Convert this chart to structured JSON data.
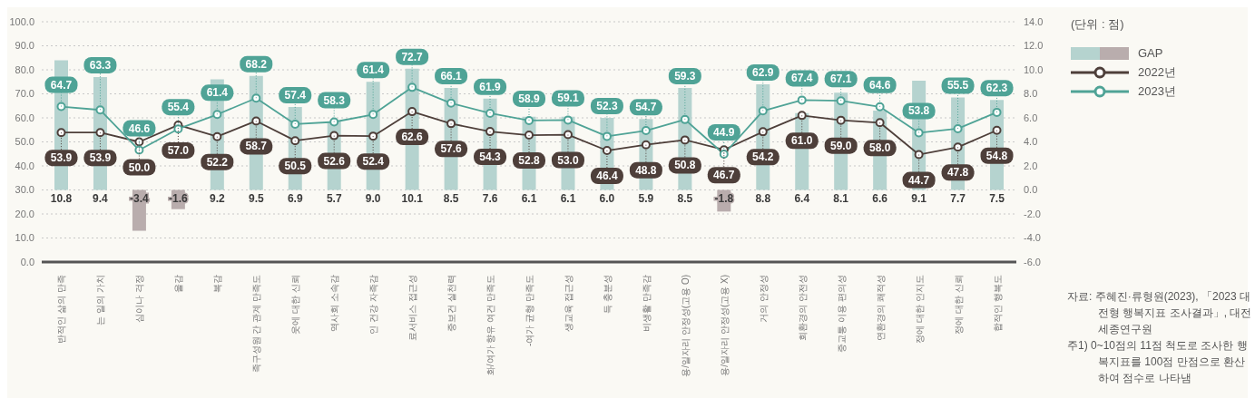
{
  "chart_data": {
    "type": "bar",
    "categories": [
      "반적인 삶의 만족",
      "는 일의 가치",
      "심이나 걱정",
      "울감",
      "복감",
      "족구성원 간 관계 만족도",
      "웃에 대한 신뢰",
      "역사회 소속감",
      "인 건강 자족감",
      "료서비스 접근성",
      "중보건 실천력",
      "화/여가 향유 여건 만족도",
      "-여가 균형 만족도",
      "생교육 접근성",
      "득 충분성",
      "비생활 만족감",
      "용/일자리 안정성(고용 O)",
      "용/일자리 안정성(고용 X)",
      "거의 안정성",
      "회환경의 안전성",
      "중교통 이용 편의성",
      "연환경의 쾌적성",
      "정에 대한 인지도",
      "정에 대한 신뢰",
      "합적인 행복도"
    ],
    "series": [
      {
        "name": "GAP",
        "axis": "y2",
        "value_labels": [
          "10.8",
          "9.4",
          "-3.4",
          "-1.6",
          "9.2",
          "9.5",
          "6.9",
          "5.7",
          "9.0",
          "10.1",
          "8.5",
          "7.6",
          "6.1",
          "6.1",
          "6.0",
          "5.9",
          "8.5",
          "-1.8",
          "8.8",
          "6.4",
          "8.1",
          "6.6",
          "9.1",
          "7.7",
          "7.5"
        ],
        "color": "#b5d3cf",
        "colors": [
          "#b5d3cf",
          "#b5d3cf",
          "#b9adad",
          "#b9adad",
          "#b5d3cf",
          "#b5d3cf",
          "#b5d3cf",
          "#b5d3cf",
          "#b5d3cf",
          "#b5d3cf",
          "#b5d3cf",
          "#b5d3cf",
          "#b5d3cf",
          "#b5d3cf",
          "#b5d3cf",
          "#b5d3cf",
          "#b5d3cf",
          "#b9adad",
          "#b5d3cf",
          "#b5d3cf",
          "#b5d3cf",
          "#b5d3cf",
          "#b5d3cf",
          "#b5d3cf",
          "#b5d3cf"
        ],
        "values": [
          10.8,
          9.4,
          -3.4,
          -1.6,
          9.2,
          9.5,
          6.9,
          5.7,
          9.0,
          10.1,
          8.5,
          7.6,
          6.1,
          6.1,
          6.0,
          5.9,
          8.5,
          -1.8,
          8.8,
          6.4,
          8.1,
          6.6,
          9.1,
          7.7,
          7.5
        ]
      },
      {
        "name": "2022년",
        "type": "line",
        "axis": "y",
        "color": "#4e3f3a",
        "value_labels": [
          "53.9",
          "53.9",
          "50.0",
          "57.0",
          "52.2",
          "58.7",
          "50.5",
          "52.6",
          "52.4",
          "62.6",
          "57.6",
          "54.3",
          "52.8",
          "53.0",
          "46.4",
          "48.8",
          "50.8",
          "46.7",
          "54.2",
          "61.0",
          "59.0",
          "58.0",
          "44.7",
          "47.8",
          "54.8"
        ],
        "values": [
          53.9,
          53.9,
          50.0,
          57.0,
          52.2,
          58.7,
          50.5,
          52.6,
          52.4,
          62.6,
          57.6,
          54.3,
          52.8,
          53.0,
          46.4,
          48.8,
          50.8,
          46.7,
          54.2,
          61.0,
          59.0,
          58.0,
          44.7,
          47.8,
          54.8
        ]
      },
      {
        "name": "2023년",
        "type": "line",
        "axis": "y",
        "color": "#4fa396",
        "value_labels": [
          "64.7",
          "63.3",
          "46.6",
          "55.4",
          "61.4",
          "68.2",
          "57.4",
          "58.3",
          "61.4",
          "72.7",
          "66.1",
          "61.9",
          "58.9",
          "59.1",
          "52.3",
          "54.7",
          "59.3",
          "44.9",
          "62.9",
          "67.4",
          "67.1",
          "64.6",
          "53.8",
          "55.5",
          "62.3"
        ],
        "values": [
          64.7,
          63.3,
          46.6,
          55.4,
          61.4,
          68.2,
          57.4,
          58.3,
          61.4,
          72.7,
          66.1,
          61.9,
          58.9,
          59.1,
          52.3,
          54.7,
          59.3,
          44.9,
          62.9,
          67.4,
          67.1,
          64.6,
          53.8,
          55.5,
          62.3
        ]
      }
    ],
    "ylim": [
      0,
      100
    ],
    "yticks": [
      {
        "value": 0,
        "label": "0.0"
      },
      {
        "value": 10,
        "label": "10.0"
      },
      {
        "value": 20,
        "label": "20.0"
      },
      {
        "value": 30,
        "label": "30.0"
      },
      {
        "value": 40,
        "label": "40.0"
      },
      {
        "value": 50,
        "label": "50.0"
      },
      {
        "value": 60,
        "label": "60.0"
      },
      {
        "value": 70,
        "label": "70.0"
      },
      {
        "value": 80,
        "label": "80.0"
      },
      {
        "value": 90,
        "label": "90.0"
      },
      {
        "value": 100,
        "label": "100.0"
      }
    ],
    "y2lim": [
      -6,
      14
    ],
    "y2ticks": [
      {
        "value": -6,
        "label": "-6.0"
      },
      {
        "value": -4,
        "label": "-4.0"
      },
      {
        "value": -2,
        "label": "-2.0"
      },
      {
        "value": 0,
        "label": "0.0"
      },
      {
        "value": 2,
        "label": "2.0"
      },
      {
        "value": 4,
        "label": "4.0"
      },
      {
        "value": 6,
        "label": "6.0"
      },
      {
        "value": 8,
        "label": "8.0"
      },
      {
        "value": 10,
        "label": "10.0"
      },
      {
        "value": 12,
        "label": "12.0"
      },
      {
        "value": 14,
        "label": "14.0"
      }
    ],
    "grid": "y",
    "legend": "top right",
    "marker": "circle",
    "annotations": [
      "(단위 : 점)",
      "자료: 주혜진·류형원(2023), 「2023 대전형 행복지표 조사결과」, 대전세종연구원",
      "주1) 0~10점의 11점 척도로 조사한 행복지표를 100점 만점으로 환산하여 점수로 나타냄"
    ]
  }
}
